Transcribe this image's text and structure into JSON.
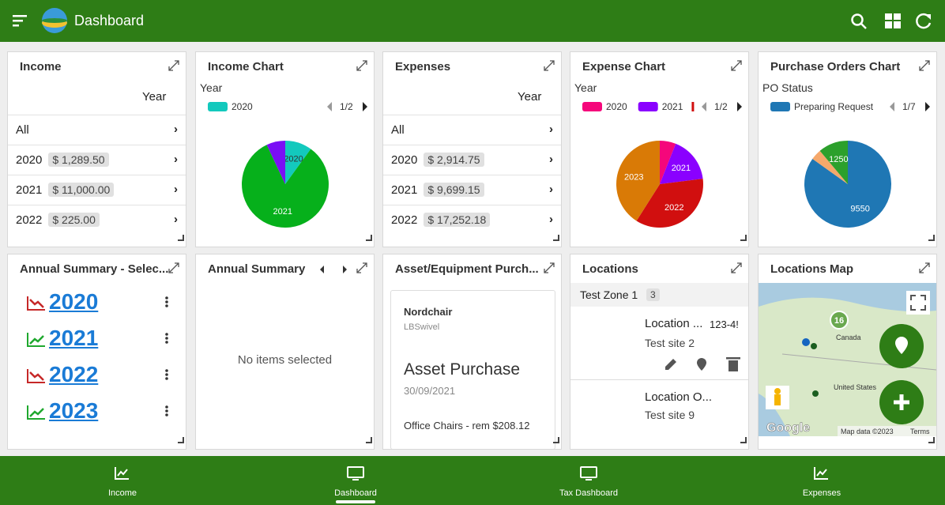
{
  "header": {
    "title": "Dashboard"
  },
  "income": {
    "title": "Income",
    "column": "Year",
    "rows": [
      {
        "year": "All"
      },
      {
        "year": "2020",
        "amount": "$ 1,289.50"
      },
      {
        "year": "2021",
        "amount": "$ 11,000.00"
      },
      {
        "year": "2022",
        "amount": "$ 225.00"
      }
    ]
  },
  "expenses": {
    "title": "Expenses",
    "column": "Year",
    "rows": [
      {
        "year": "All"
      },
      {
        "year": "2020",
        "amount": "$ 2,914.75"
      },
      {
        "year": "2021",
        "amount": "$ 9,699.15"
      },
      {
        "year": "2022",
        "amount": "$ 17,252.18"
      }
    ]
  },
  "chart_data": [
    {
      "type": "pie",
      "title": "Income Chart",
      "legend_title": "Year",
      "pager": "1/2",
      "categories": [
        "2020",
        "2021",
        null
      ],
      "values": [
        10,
        83,
        7
      ],
      "colors": [
        "#13c9bd",
        "#06b01b",
        "#7a0ff5"
      ]
    },
    {
      "type": "pie",
      "title": "Expense Chart",
      "legend_title": "Year",
      "pager": "1/2",
      "categories": [
        "2020",
        "2021",
        "2022",
        "2023"
      ],
      "values": [
        6,
        17,
        36,
        41
      ],
      "colors": [
        "#f5077b",
        "#8a00ff",
        "#d10f0f",
        "#d97a06"
      ]
    },
    {
      "type": "pie",
      "title": "Purchase Orders Chart",
      "legend_title": "PO Status",
      "pager": "1/7",
      "categories": [
        "Preparing Request",
        null,
        null
      ],
      "values": [
        9550,
        450,
        1250
      ],
      "colors": [
        "#1f77b4",
        "#f5a86b",
        "#2ca02c"
      ]
    }
  ],
  "annual_select": {
    "title": "Annual Summary - Selec...",
    "years": [
      "2020",
      "2021",
      "2022",
      "2023"
    ]
  },
  "annual_summary": {
    "title": "Annual Summary",
    "empty": "No items selected"
  },
  "asset": {
    "title": "Asset/Equipment Purch...",
    "vendor": "Nordchair",
    "model": "LBSwivel",
    "heading": "Asset Purchase",
    "date": "30/09/2021",
    "line": "Office Chairs - rem $208.12"
  },
  "locations": {
    "title": "Locations",
    "zone": "Test Zone 1",
    "count": "3",
    "items": [
      {
        "name": "Location ...",
        "code": "123-4!",
        "site": "Test site 2"
      },
      {
        "name": "Location O...",
        "site": "Test site 9"
      }
    ]
  },
  "map": {
    "title": "Locations Map",
    "cluster": "16",
    "country1": "Canada",
    "country2": "United States",
    "brand": "Google",
    "attribution": "Map data ©2023",
    "terms": "Terms"
  },
  "nav": [
    "Income",
    "Dashboard",
    "Tax Dashboard",
    "Expenses"
  ]
}
